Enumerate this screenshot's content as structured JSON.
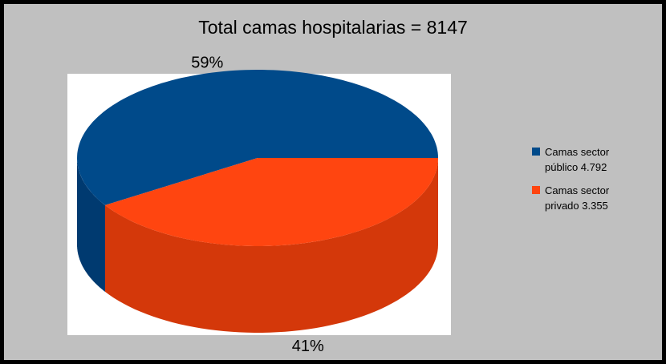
{
  "chart_data": {
    "type": "pie3d",
    "title": "Total camas hospitalarias = 8147",
    "series": [
      {
        "name": "Camas sector público 4.792",
        "color": "#004a8a",
        "side_color": "#003a70",
        "values": [
          59
        ],
        "value_labels": [
          "59%"
        ]
      },
      {
        "name": "Camas sector privado 3.355",
        "color": "#ff4510",
        "side_color": "#d4380a",
        "values": [
          41
        ],
        "value_labels": [
          "41%"
        ]
      }
    ],
    "legend": "right"
  }
}
